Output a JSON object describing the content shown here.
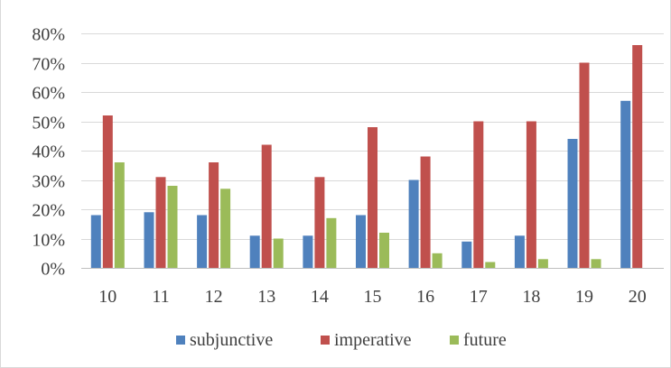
{
  "chart_data": {
    "type": "bar",
    "categories": [
      "10",
      "11",
      "12",
      "13",
      "14",
      "15",
      "16",
      "17",
      "18",
      "19",
      "20"
    ],
    "series": [
      {
        "name": "subjunctive",
        "color": "#4F81BD",
        "values": [
          18,
          19,
          18,
          11,
          11,
          18,
          30,
          9,
          11,
          44,
          57
        ]
      },
      {
        "name": "imperative",
        "color": "#C0504D",
        "values": [
          52,
          31,
          36,
          42,
          31,
          48,
          38,
          50,
          50,
          70,
          76
        ]
      },
      {
        "name": "future",
        "color": "#9BBB59",
        "values": [
          36,
          28,
          27,
          10,
          17,
          12,
          5,
          2,
          3,
          3,
          0
        ]
      }
    ],
    "yticks": [
      "0%",
      "10%",
      "20%",
      "30%",
      "40%",
      "50%",
      "60%",
      "70%",
      "80%"
    ],
    "ylim": [
      0,
      80
    ],
    "grid": true,
    "legend_position": "bottom"
  }
}
